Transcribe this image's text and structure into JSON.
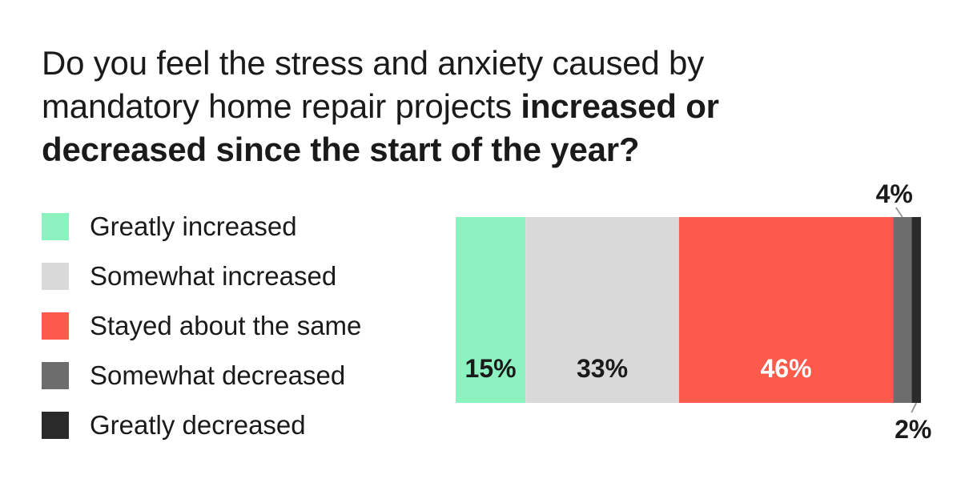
{
  "title": {
    "regular": "Do you feel the stress and anxiety caused by mandatory home repair projects ",
    "bold": "increased or decreased since the start of the year?"
  },
  "chart_data": {
    "type": "bar",
    "orientation": "horizontal-stacked",
    "categories": [
      "Greatly increased",
      "Somewhat increased",
      "Stayed about the same",
      "Somewhat decreased",
      "Greatly decreased"
    ],
    "values": [
      15,
      33,
      46,
      4,
      2
    ],
    "labels": [
      "15%",
      "33%",
      "46%",
      "4%",
      "2%"
    ],
    "colors": [
      "#8cf2c0",
      "#d9d9d9",
      "#fc5a4a",
      "#6d6d6d",
      "#2a2a2a"
    ],
    "label_colors": [
      "#1a1a1a",
      "#1a1a1a",
      "#ffffff",
      "#1a1a1a",
      "#1a1a1a"
    ],
    "xlim": [
      0,
      100
    ],
    "legend_position": "left"
  }
}
